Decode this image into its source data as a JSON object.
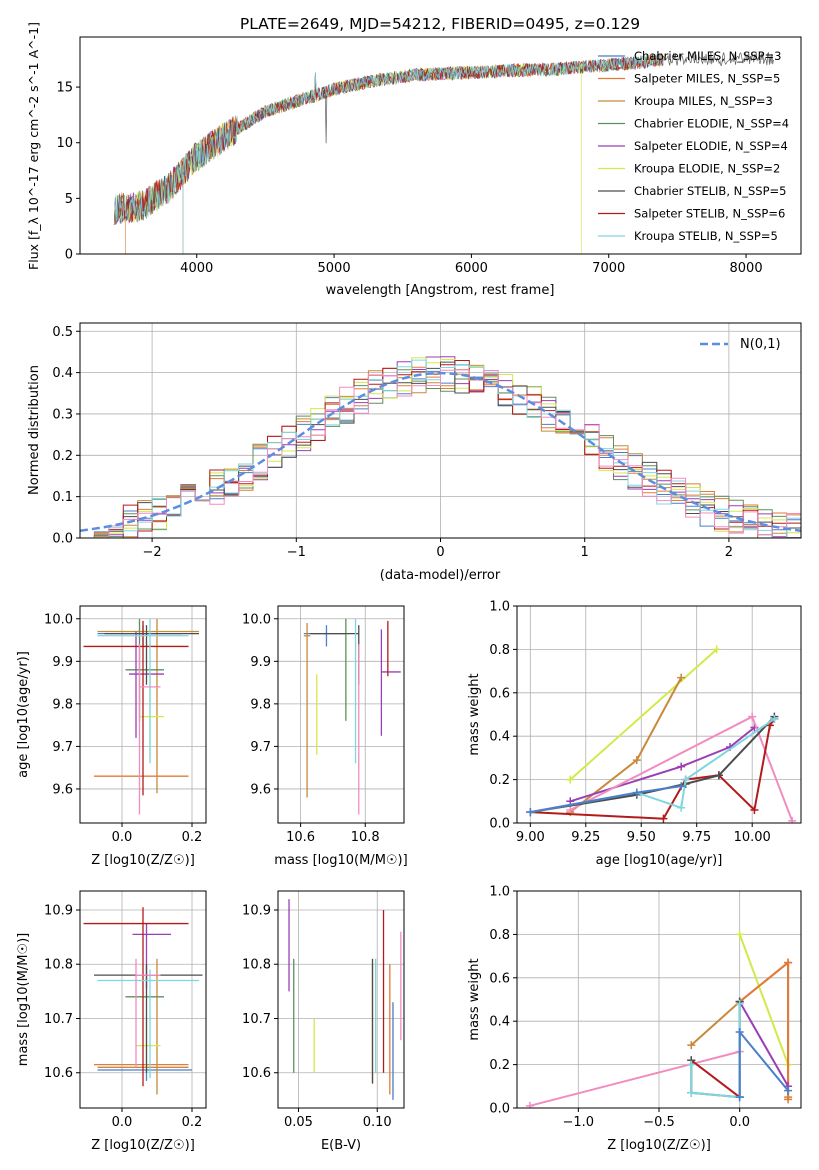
{
  "title": "PLATE=2649, MJD=54212, FIBERID=0495, z=0.129",
  "chart_data": [
    {
      "type": "line",
      "panel": "spectrum",
      "xlabel": "wavelength [Angstrom, rest frame]",
      "ylabel": "Flux [f_λ 10^-17 erg cm^-2 s^-1 A^-1]",
      "xlim": [
        3150,
        8400
      ],
      "ylim": [
        0,
        19.5
      ],
      "xticks": [
        4000,
        5000,
        6000,
        7000,
        8000
      ],
      "yticks": [
        0,
        5,
        10,
        15
      ],
      "grid": false,
      "legend_placement": "right",
      "series": [
        {
          "name": "Chabrier MILES, N_SSP=3",
          "color": "#4a7fc9"
        },
        {
          "name": "Salpeter MILES, N_SSP=5",
          "color": "#e07b39"
        },
        {
          "name": "Kroupa MILES, N_SSP=3",
          "color": "#c8893a"
        },
        {
          "name": "Chabrier ELODIE, N_SSP=4",
          "color": "#5f8f5f"
        },
        {
          "name": "Salpeter ELODIE, N_SSP=4",
          "color": "#9b3fb5"
        },
        {
          "name": "Kroupa ELODIE, N_SSP=2",
          "color": "#d4e84a"
        },
        {
          "name": "Chabrier STELIB, N_SSP=5",
          "color": "#4d4d4d"
        },
        {
          "name": "Salpeter STELIB, N_SSP=6",
          "color": "#b31b1b"
        },
        {
          "name": "Kroupa STELIB, N_SSP=5",
          "color": "#7fd6e0"
        }
      ],
      "continuum": {
        "wavelength": [
          3400,
          3600,
          3800,
          4000,
          4200,
          4500,
          4800,
          5000,
          5300,
          5600,
          6000,
          6300,
          6600,
          7000,
          7200,
          7400
        ],
        "flux": [
          4.0,
          4.3,
          6.0,
          8.8,
          10.5,
          12.8,
          14.0,
          14.8,
          15.6,
          16.1,
          16.3,
          16.5,
          16.6,
          17.0,
          17.2,
          17.5
        ]
      }
    },
    {
      "type": "line",
      "panel": "residuals",
      "xlabel": "(data-model)/error",
      "ylabel": "Normed distribution",
      "xlim": [
        -2.5,
        2.5
      ],
      "ylim": [
        0,
        0.52
      ],
      "xticks": [
        -2,
        -1,
        0,
        1,
        2
      ],
      "yticks": [
        0.0,
        0.1,
        0.2,
        0.3,
        0.4,
        0.5
      ],
      "grid": true,
      "legend_placement": "top-right",
      "legend": "N(0,1)",
      "gaussian_color": "#5b8ede"
    },
    {
      "type": "scatter",
      "panel": "age_vs_Z",
      "xlabel": "Z [log10(Z/Z☉)]",
      "ylabel": "age [log10(age/yr)]",
      "xlim": [
        -0.12,
        0.24
      ],
      "ylim": [
        9.52,
        10.03
      ],
      "xticks": [
        0.0,
        0.2
      ],
      "yticks": [
        9.6,
        9.7,
        9.8,
        9.9,
        10.0
      ],
      "grid": true,
      "points": [
        {
          "x": 0.06,
          "y": 9.965,
          "xerr": [
            0.13,
            0.11
          ],
          "yerr": [
            0.03,
            0.02
          ],
          "color": "#4a7fc9"
        },
        {
          "x": 0.05,
          "y": 9.63,
          "xerr": [
            0.13,
            0.14
          ],
          "yerr": [
            0.0,
            0.0
          ],
          "color": "#e07b39"
        },
        {
          "x": 0.1,
          "y": 9.97,
          "xerr": [
            0.17,
            0.12
          ],
          "yerr": [
            0.38,
            0.03
          ],
          "color": "#c8893a"
        },
        {
          "x": 0.05,
          "y": 9.88,
          "xerr": [
            0.04,
            0.07
          ],
          "yerr": [
            0.12,
            0.12
          ],
          "color": "#5f8f5f"
        },
        {
          "x": 0.04,
          "y": 9.87,
          "xerr": [
            0.02,
            0.08
          ],
          "yerr": [
            0.15,
            0.1
          ],
          "color": "#9b3fb5"
        },
        {
          "x": 0.08,
          "y": 9.77,
          "xerr": [
            0.03,
            0.04
          ],
          "yerr": [
            0.09,
            0.1
          ],
          "color": "#d4e84a"
        },
        {
          "x": 0.07,
          "y": 9.965,
          "xerr": [
            0.12,
            0.15
          ],
          "yerr": [
            0.12,
            0.02
          ],
          "color": "#4d4d4d"
        },
        {
          "x": 0.06,
          "y": 9.935,
          "xerr": [
            0.17,
            0.13
          ],
          "yerr": [
            0.35,
            0.06
          ],
          "color": "#b31b1b"
        },
        {
          "x": 0.08,
          "y": 9.96,
          "xerr": [
            0.15,
            0.11
          ],
          "yerr": [
            0.3,
            0.04
          ],
          "color": "#7fd6e0"
        },
        {
          "x": 0.05,
          "y": 9.84,
          "xerr": [
            0.0,
            0.06
          ],
          "yerr": [
            0.3,
            0.1
          ],
          "color": "#f28cc0"
        }
      ]
    },
    {
      "type": "scatter",
      "panel": "age_vs_mass",
      "xlabel": "mass [log10(M/M☉)]",
      "ylabel": "",
      "xlim": [
        10.53,
        10.92
      ],
      "ylim": [
        9.52,
        10.03
      ],
      "xticks": [
        10.6,
        10.8
      ],
      "yticks": [
        9.6,
        9.7,
        9.8,
        9.9,
        10.0
      ],
      "grid": true,
      "points": [
        {
          "x": 10.68,
          "y": 9.965,
          "xerr": [
            0.07,
            0.06
          ],
          "yerr": [
            0.03,
            0.02
          ],
          "color": "#4a7fc9"
        },
        {
          "x": 10.61,
          "y": 9.63,
          "xerr": [
            0.0,
            0.0
          ],
          "yerr": [
            0.0,
            0.0
          ],
          "color": "#e07b39"
        },
        {
          "x": 10.62,
          "y": 9.96,
          "xerr": [
            0.01,
            0.01
          ],
          "yerr": [
            0.38,
            0.03
          ],
          "color": "#c8893a"
        },
        {
          "x": 10.74,
          "y": 9.88,
          "xerr": [
            0.0,
            0.0
          ],
          "yerr": [
            0.12,
            0.12
          ],
          "color": "#5f8f5f"
        },
        {
          "x": 10.85,
          "y": 9.875,
          "xerr": [
            0.0,
            0.06
          ],
          "yerr": [
            0.15,
            0.1
          ],
          "color": "#9b3fb5"
        },
        {
          "x": 10.65,
          "y": 9.77,
          "xerr": [
            0.0,
            0.0
          ],
          "yerr": [
            0.09,
            0.1
          ],
          "color": "#d4e84a"
        },
        {
          "x": 10.78,
          "y": 9.965,
          "xerr": [
            0.15,
            0.0
          ],
          "yerr": [
            0.12,
            0.02
          ],
          "color": "#4d4d4d"
        },
        {
          "x": 10.87,
          "y": 9.935,
          "xerr": [
            0.0,
            0.0
          ],
          "yerr": [
            0.07,
            0.06
          ],
          "color": "#b31b1b"
        },
        {
          "x": 10.77,
          "y": 9.96,
          "xerr": [
            0.0,
            0.0
          ],
          "yerr": [
            0.3,
            0.04
          ],
          "color": "#7fd6e0"
        },
        {
          "x": 10.78,
          "y": 9.84,
          "xerr": [
            0.0,
            0.0
          ],
          "yerr": [
            0.3,
            0.1
          ],
          "color": "#f28cc0"
        }
      ]
    },
    {
      "type": "line",
      "panel": "weight_vs_age",
      "xlabel": "age [log10(age/yr)]",
      "ylabel": "mass weight",
      "xlim": [
        8.94,
        10.22
      ],
      "ylim": [
        0,
        1
      ],
      "xticks": [
        9.0,
        9.25,
        9.5,
        9.75,
        10.0
      ],
      "yticks": [
        0.0,
        0.2,
        0.4,
        0.6,
        0.8,
        1.0
      ],
      "grid": true,
      "series": [
        {
          "color": "#d4e84a",
          "x": [
            9.18,
            9.84
          ],
          "y": [
            0.2,
            0.8
          ]
        },
        {
          "color": "#c8893a",
          "x": [
            9.18,
            9.48,
            9.68
          ],
          "y": [
            0.05,
            0.29,
            0.67
          ]
        },
        {
          "color": "#9b3fb5",
          "x": [
            9.18,
            9.68,
            9.9,
            10.01
          ],
          "y": [
            0.1,
            0.26,
            0.35,
            0.44
          ]
        },
        {
          "color": "#f28cc0",
          "x": [
            9.18,
            10.0,
            10.18
          ],
          "y": [
            0.06,
            0.49,
            0.01
          ]
        },
        {
          "color": "#b31b1b",
          "x": [
            9.0,
            9.6,
            9.7,
            9.85,
            10.01,
            10.08,
            10.1
          ],
          "y": [
            0.05,
            0.02,
            0.2,
            0.22,
            0.06,
            0.45,
            0.48
          ]
        },
        {
          "color": "#4d4d4d",
          "x": [
            9.0,
            9.48,
            9.7,
            9.85,
            10.1
          ],
          "y": [
            0.05,
            0.13,
            0.18,
            0.22,
            0.49
          ]
        },
        {
          "color": "#7fd6e0",
          "x": [
            9.0,
            9.48,
            9.68,
            9.7,
            10.1
          ],
          "y": [
            0.05,
            0.14,
            0.07,
            0.2,
            0.48
          ]
        },
        {
          "color": "#4a7fc9",
          "x": [
            9.0,
            9.48,
            9.68
          ],
          "y": [
            0.05,
            0.14,
            0.17
          ]
        }
      ]
    },
    {
      "type": "scatter",
      "panel": "mass_vs_Z",
      "xlabel": "Z [log10(Z/Z☉)]",
      "ylabel": "mass [log10(M/M☉)]",
      "xlim": [
        -0.12,
        0.24
      ],
      "ylim": [
        10.535,
        10.935
      ],
      "xticks": [
        0.0,
        0.2
      ],
      "yticks": [
        10.6,
        10.7,
        10.8,
        10.9
      ],
      "grid": true,
      "points": [
        {
          "x": 0.07,
          "y": 10.605,
          "xerr": [
            0.14,
            0.13
          ],
          "yerr": [
            0.02,
            0.0
          ],
          "color": "#4a7fc9"
        },
        {
          "x": 0.05,
          "y": 10.615,
          "xerr": [
            0.13,
            0.14
          ],
          "yerr": [
            0.0,
            0.0
          ],
          "color": "#e07b39"
        },
        {
          "x": 0.1,
          "y": 10.61,
          "xerr": [
            0.17,
            0.09
          ],
          "yerr": [
            0.05,
            0.2
          ],
          "color": "#c8893a"
        },
        {
          "x": 0.05,
          "y": 10.74,
          "xerr": [
            0.04,
            0.07
          ],
          "yerr": [
            0.0,
            0.0
          ],
          "color": "#5f8f5f"
        },
        {
          "x": 0.07,
          "y": 10.855,
          "xerr": [
            0.04,
            0.07
          ],
          "yerr": [
            0.1,
            0.02
          ],
          "color": "#9b3fb5"
        },
        {
          "x": 0.07,
          "y": 10.65,
          "xerr": [
            0.03,
            0.04
          ],
          "yerr": [
            0.05,
            0.05
          ],
          "color": "#d4e84a"
        },
        {
          "x": 0.07,
          "y": 10.78,
          "xerr": [
            0.15,
            0.16
          ],
          "yerr": [
            0.18,
            0.02
          ],
          "color": "#4d4d4d"
        },
        {
          "x": 0.06,
          "y": 10.875,
          "xerr": [
            0.17,
            0.13
          ],
          "yerr": [
            0.3,
            0.03
          ],
          "color": "#b31b1b"
        },
        {
          "x": 0.08,
          "y": 10.77,
          "xerr": [
            0.15,
            0.14
          ],
          "yerr": [
            0.18,
            0.02
          ],
          "color": "#7fd6e0"
        },
        {
          "x": 0.04,
          "y": 10.78,
          "xerr": [
            0.0,
            0.07
          ],
          "yerr": [
            0.17,
            0.03
          ],
          "color": "#f28cc0"
        }
      ]
    },
    {
      "type": "scatter",
      "panel": "mass_vs_EBV",
      "xlabel": "E(B-V)",
      "ylabel": "",
      "xlim": [
        0.037,
        0.117
      ],
      "ylim": [
        10.535,
        10.935
      ],
      "xticks": [
        0.05,
        0.1
      ],
      "yticks": [
        10.6,
        10.7,
        10.8,
        10.9
      ],
      "grid": true,
      "points": [
        {
          "x": 0.11,
          "y": 10.61,
          "yerr": [
            0.06,
            0.12
          ],
          "color": "#4a7fc9"
        },
        {
          "x": 0.108,
          "y": 10.62,
          "yerr": [
            0.06,
            0.18
          ],
          "color": "#e07b39"
        },
        {
          "x": 0.097,
          "y": 10.62,
          "yerr": [
            0.04,
            0.18
          ],
          "color": "#c8893a"
        },
        {
          "x": 0.047,
          "y": 10.71,
          "yerr": [
            0.11,
            0.1
          ],
          "color": "#5f8f5f"
        },
        {
          "x": 0.044,
          "y": 10.84,
          "yerr": [
            0.09,
            0.08
          ],
          "color": "#9b3fb5"
        },
        {
          "x": 0.06,
          "y": 10.65,
          "yerr": [
            0.05,
            0.05
          ],
          "color": "#d4e84a"
        },
        {
          "x": 0.097,
          "y": 10.7,
          "yerr": [
            0.12,
            0.11
          ],
          "color": "#4d4d4d"
        },
        {
          "x": 0.104,
          "y": 10.8,
          "yerr": [
            0.2,
            0.1
          ],
          "color": "#b31b1b"
        },
        {
          "x": 0.099,
          "y": 10.76,
          "yerr": [
            0.16,
            0.05
          ],
          "color": "#7fd6e0"
        },
        {
          "x": 0.115,
          "y": 10.76,
          "yerr": [
            0.1,
            0.1
          ],
          "color": "#f28cc0"
        }
      ]
    },
    {
      "type": "line",
      "panel": "weight_vs_Z",
      "xlabel": "Z [log10(Z/Z☉)]",
      "ylabel": "mass weight",
      "xlim": [
        -1.38,
        0.38
      ],
      "ylim": [
        0,
        1
      ],
      "xticks": [
        -1.0,
        -0.5,
        0.0
      ],
      "yticks": [
        0.0,
        0.2,
        0.4,
        0.6,
        0.8,
        1.0
      ],
      "grid": true,
      "series": [
        {
          "color": "#f28cc0",
          "x": [
            -1.3,
            0.0
          ],
          "y": [
            0.01,
            0.26
          ]
        },
        {
          "color": "#d4e84a",
          "x": [
            0.0,
            0.3
          ],
          "y": [
            0.8,
            0.2
          ]
        },
        {
          "color": "#c8893a",
          "x": [
            -0.3,
            0.0,
            0.3,
            0.3
          ],
          "y": [
            0.29,
            0.49,
            0.67,
            0.05
          ]
        },
        {
          "color": "#e07b39",
          "x": [
            0.0,
            0.3,
            0.3
          ],
          "y": [
            0.49,
            0.67,
            0.04
          ]
        },
        {
          "color": "#9b3fb5",
          "x": [
            0.0,
            0.3
          ],
          "y": [
            0.49,
            0.1
          ]
        },
        {
          "color": "#b31b1b",
          "x": [
            -0.3,
            0.0
          ],
          "y": [
            0.22,
            0.05
          ]
        },
        {
          "color": "#4d4d4d",
          "x": [
            -0.3,
            -0.3,
            0.0,
            0.0
          ],
          "y": [
            0.22,
            0.07,
            0.05,
            0.49
          ]
        },
        {
          "color": "#7fd6e0",
          "x": [
            -0.3,
            -0.3,
            0.0,
            0.0
          ],
          "y": [
            0.2,
            0.07,
            0.05,
            0.48
          ]
        },
        {
          "color": "#4a7fc9",
          "x": [
            0.0,
            0.0,
            0.3
          ],
          "y": [
            0.05,
            0.35,
            0.08
          ]
        }
      ]
    }
  ]
}
